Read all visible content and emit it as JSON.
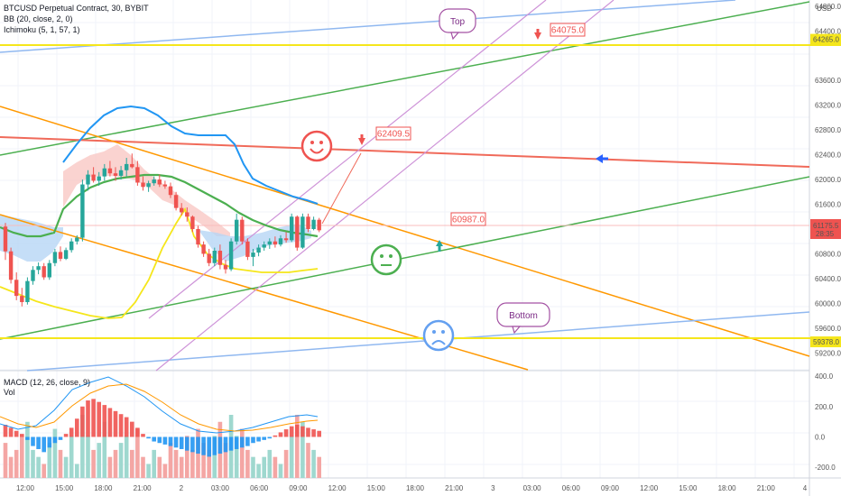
{
  "header": {
    "title": "BTCUSD Perpetual Contract, 30, BYBIT",
    "bb": "BB (20, close, 2, 0)",
    "ichimoku": "Ichimoku (5, 1, 57, 1)",
    "macd": "MACD (12, 26, close, 9)",
    "vol": "Vol"
  },
  "price_axis": {
    "currency": "USD",
    "ticks": [
      "64800.0",
      "64400.0",
      "63600.0",
      "63200.0",
      "62800.0",
      "62400.0",
      "62000.0",
      "61600.0",
      "60800.0",
      "60400.0",
      "60000.0",
      "59600.0",
      "59200.0"
    ],
    "last_price": "61175.5",
    "countdown": "28:35",
    "level_top": "64265.0",
    "level_bottom": "59378.0"
  },
  "macd_axis": {
    "ticks": [
      "400.0",
      "200.0",
      "0.0",
      "-200.0"
    ]
  },
  "time_axis": {
    "ticks": [
      "12:00",
      "15:00",
      "18:00",
      "21:00",
      "2",
      "03:00",
      "06:00",
      "09:00",
      "12:00",
      "15:00",
      "18:00",
      "21:00",
      "3",
      "03:00",
      "06:00",
      "09:00",
      "12:00",
      "15:00",
      "18:00",
      "21:00",
      "4"
    ]
  },
  "annotations": {
    "top": "Top",
    "bottom": "Bottom",
    "p1": "64075.0",
    "p2": "62409.5",
    "p3": "60987.0"
  },
  "colors": {
    "up": "#26a69a",
    "down": "#ef5350",
    "bb": "#2196f3",
    "basis": "#4caf50",
    "yellow": "#f5e61b",
    "orange": "#ff9800",
    "violet": "#ce93d8",
    "blue_line": "#90b8f0",
    "red_line": "#f06a5a"
  },
  "chart_data": {
    "type": "candlestick",
    "y_range": [
      59000,
      64900
    ],
    "candles": [
      [
        61240,
        61300,
        60700,
        60840
      ],
      [
        60840,
        60900,
        60320,
        60380
      ],
      [
        60380,
        60500,
        60050,
        60120
      ],
      [
        60120,
        60250,
        59950,
        60020
      ],
      [
        60020,
        60420,
        59980,
        60360
      ],
      [
        60360,
        60600,
        60300,
        60540
      ],
      [
        60540,
        60660,
        60470,
        60600
      ],
      [
        60600,
        60650,
        60380,
        60420
      ],
      [
        60420,
        60700,
        60380,
        60650
      ],
      [
        60650,
        60880,
        60600,
        60830
      ],
      [
        60830,
        60920,
        60680,
        60720
      ],
      [
        60720,
        60900,
        60700,
        60860
      ],
      [
        60860,
        61050,
        60820,
        61000
      ],
      [
        61000,
        61100,
        60950,
        61060
      ],
      [
        61060,
        62000,
        61000,
        61920
      ],
      [
        61920,
        62150,
        61820,
        62080
      ],
      [
        62080,
        62200,
        61950,
        61980
      ],
      [
        61980,
        62120,
        61900,
        62050
      ],
      [
        62050,
        62250,
        61980,
        62180
      ],
      [
        62180,
        62300,
        62050,
        62100
      ],
      [
        62100,
        62200,
        61980,
        62060
      ],
      [
        62060,
        62220,
        62000,
        62150
      ],
      [
        62150,
        62350,
        62050,
        62250
      ],
      [
        62250,
        62420,
        62180,
        62200
      ],
      [
        62200,
        62300,
        61900,
        61950
      ],
      [
        61950,
        62050,
        61820,
        61880
      ],
      [
        61880,
        61980,
        61800,
        61940
      ],
      [
        61940,
        62050,
        61900,
        62000
      ],
      [
        62000,
        62080,
        61880,
        61920
      ],
      [
        61920,
        61980,
        61850,
        61890
      ],
      [
        61890,
        61950,
        61700,
        61750
      ],
      [
        61750,
        61800,
        61500,
        61540
      ],
      [
        61540,
        61620,
        61420,
        61470
      ],
      [
        61470,
        61550,
        61320,
        61400
      ],
      [
        61400,
        61420,
        61150,
        61200
      ],
      [
        61200,
        61250,
        60900,
        60950
      ],
      [
        60950,
        61000,
        60750,
        60800
      ],
      [
        60800,
        60880,
        60600,
        60650
      ],
      [
        60650,
        60900,
        60600,
        60850
      ],
      [
        60850,
        60950,
        60550,
        60620
      ],
      [
        60620,
        60700,
        60480,
        60550
      ],
      [
        60550,
        61050,
        60520,
        61000
      ],
      [
        61000,
        61450,
        60950,
        61350
      ],
      [
        61350,
        61400,
        60950,
        61000
      ],
      [
        61000,
        61050,
        60700,
        60750
      ],
      [
        60750,
        60880,
        60600,
        60820
      ],
      [
        60820,
        60950,
        60760,
        60900
      ],
      [
        60900,
        61000,
        60850,
        60950
      ],
      [
        60950,
        61050,
        60880,
        61000
      ],
      [
        61000,
        61080,
        60900,
        60950
      ],
      [
        60950,
        61100,
        60920,
        61050
      ],
      [
        61050,
        61150,
        60980,
        61020
      ],
      [
        61020,
        61450,
        60990,
        61400
      ],
      [
        61400,
        61420,
        60850,
        60900
      ],
      [
        60900,
        61450,
        60880,
        61400
      ],
      [
        61400,
        61450,
        61150,
        61200
      ],
      [
        61200,
        61400,
        61180,
        61350
      ],
      [
        61350,
        61380,
        61150,
        61180
      ]
    ],
    "macd_range": [
      -270,
      430
    ],
    "macd_hist": [
      80,
      60,
      40,
      20,
      -20,
      -60,
      -80,
      -100,
      -70,
      -40,
      -20,
      20,
      60,
      120,
      200,
      240,
      250,
      230,
      210,
      190,
      170,
      150,
      130,
      100,
      60,
      20,
      -10,
      -30,
      -40,
      -50,
      -60,
      -70,
      -80,
      -90,
      -100,
      -110,
      -120,
      -130,
      -120,
      -110,
      -100,
      -90,
      -80,
      -70,
      -60,
      -40,
      -30,
      -20,
      -10,
      10,
      30,
      50,
      70,
      80,
      70,
      60,
      50,
      40
    ],
    "vol": [
      50,
      30,
      40,
      60,
      80,
      40,
      30,
      20,
      50,
      70,
      40,
      30,
      60,
      20,
      90,
      60,
      40,
      50,
      80,
      30,
      40,
      50,
      60,
      40,
      70,
      30,
      20,
      40,
      30,
      20,
      50,
      40,
      30,
      60,
      40,
      70,
      50,
      40,
      60,
      80,
      50,
      90,
      60,
      70,
      40,
      30,
      20,
      30,
      40,
      30,
      20,
      40,
      60,
      90,
      80,
      50,
      40,
      30
    ]
  }
}
